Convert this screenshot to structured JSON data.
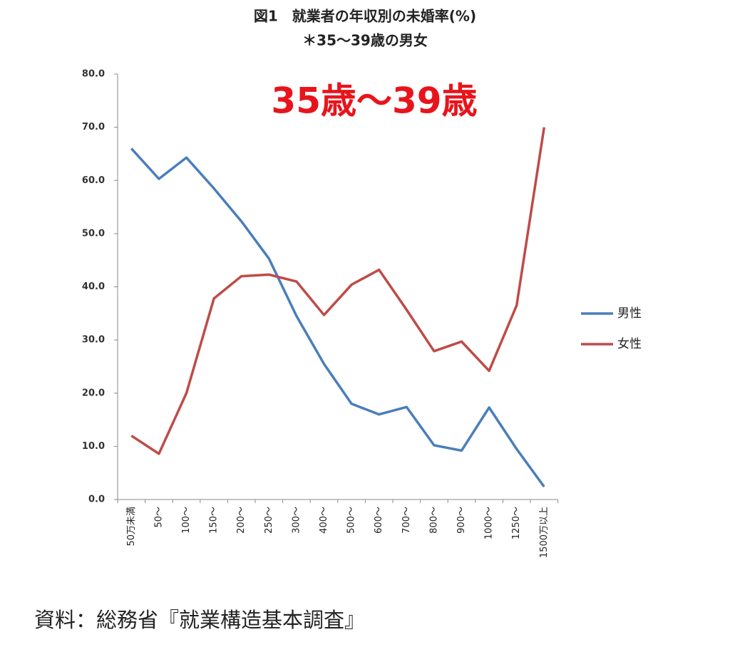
{
  "chart_data": {
    "type": "line",
    "title": "図1　就業者の年収別の未婚率(%)",
    "subtitle": "＊35～39歳の男女",
    "annotation": "35歳～39歳",
    "source": "資料：総務省『就業構造基本調査』",
    "categories": [
      "50万未満",
      "50～",
      "100～",
      "150～",
      "200～",
      "250～",
      "300～",
      "400～",
      "500～",
      "600～",
      "700～",
      "800～",
      "900～",
      "1000～",
      "1250～",
      "1500万以上"
    ],
    "series": [
      {
        "name": "男性",
        "color": "#4a7ebb",
        "values": [
          66.0,
          60.3,
          64.3,
          58.5,
          52.3,
          45.3,
          34.5,
          25.5,
          18.0,
          16.0,
          17.4,
          10.2,
          9.2,
          17.3,
          9.5,
          2.4
        ]
      },
      {
        "name": "女性",
        "color": "#be4b48",
        "values": [
          12.0,
          8.6,
          20.0,
          37.8,
          42.0,
          42.3,
          41.0,
          34.7,
          40.4,
          43.2,
          35.7,
          27.9,
          29.7,
          24.2,
          36.5,
          70.0
        ]
      }
    ],
    "ylim": [
      0,
      80
    ],
    "yticks": [
      {
        "value": 0,
        "label": "0.0"
      },
      {
        "value": 10,
        "label": "10.0"
      },
      {
        "value": 20,
        "label": "20.0"
      },
      {
        "value": 30,
        "label": "30.0"
      },
      {
        "value": 40,
        "label": "40.0"
      },
      {
        "value": 50,
        "label": "50.0"
      },
      {
        "value": 60,
        "label": "60.0"
      },
      {
        "value": 70,
        "label": "70.0"
      },
      {
        "value": 80,
        "label": "80.0"
      }
    ],
    "legend": "right"
  }
}
